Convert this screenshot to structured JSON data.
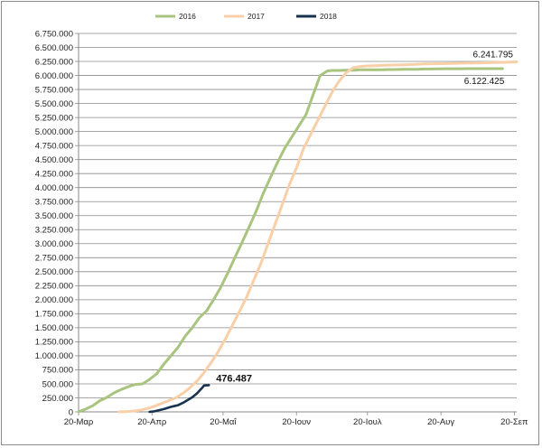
{
  "chart_data": {
    "type": "line",
    "title": "",
    "xlabel": "",
    "ylabel": "",
    "ylim": [
      0,
      6750000
    ],
    "y_ticks": [
      0,
      250000,
      500000,
      750000,
      1000000,
      1250000,
      1500000,
      1750000,
      2000000,
      2250000,
      2500000,
      2750000,
      3000000,
      3250000,
      3500000,
      3750000,
      4000000,
      4250000,
      4500000,
      4750000,
      5000000,
      5250000,
      5500000,
      5750000,
      6000000,
      6250000,
      6500000,
      6750000
    ],
    "y_tick_labels": [
      "0",
      "250.000",
      "500.000",
      "750.000",
      "1.000.000",
      "1.250.000",
      "1.500.000",
      "1.750.000",
      "2.000.000",
      "2.250.000",
      "2.500.000",
      "2.750.000",
      "3.000.000",
      "3.250.000",
      "3.500.000",
      "3.750.000",
      "4.000.000",
      "4.250.000",
      "4.500.000",
      "4.750.000",
      "5.000.000",
      "5.250.000",
      "5.500.000",
      "5.750.000",
      "6.000.000",
      "6.250.000",
      "6.500.000",
      "6.750.000"
    ],
    "xlim": [
      0,
      185
    ],
    "x_ticks": [
      0,
      31,
      61,
      92,
      122,
      153,
      184
    ],
    "x_tick_labels": [
      "20-Μαρ",
      "20-Απρ",
      "20-Μαΐ",
      "20-Ιουν",
      "20-Ιουλ",
      "20-Αυγ",
      "20-Σεπ"
    ],
    "grid": true,
    "legend_position": "top",
    "series": [
      {
        "name": "2016",
        "color": "#a9c47f",
        "x": [
          0,
          3,
          6,
          9,
          12,
          15,
          18,
          21,
          24,
          27,
          30,
          33,
          36,
          39,
          42,
          45,
          48,
          51,
          54,
          57,
          60,
          63,
          66,
          69,
          72,
          75,
          78,
          81,
          84,
          87,
          90,
          93,
          96,
          99,
          102,
          105,
          107,
          110,
          113,
          116,
          119,
          122,
          125,
          128,
          131,
          134,
          137,
          140,
          143,
          146,
          149,
          152,
          155,
          158,
          161,
          164,
          167,
          170,
          173,
          176,
          179
        ],
        "values": [
          0,
          50000,
          110000,
          200000,
          260000,
          340000,
          400000,
          450000,
          490000,
          500000,
          580000,
          680000,
          850000,
          1000000,
          1150000,
          1350000,
          1500000,
          1680000,
          1800000,
          2000000,
          2220000,
          2480000,
          2750000,
          3020000,
          3300000,
          3580000,
          3900000,
          4180000,
          4450000,
          4700000,
          4900000,
          5100000,
          5300000,
          5650000,
          6000000,
          6080000,
          6090000,
          6090000,
          6095000,
          6095000,
          6100000,
          6100000,
          6100000,
          6100000,
          6105000,
          6105000,
          6110000,
          6110000,
          6110000,
          6115000,
          6115000,
          6118000,
          6120000,
          6120000,
          6120000,
          6121000,
          6121000,
          6122000,
          6122000,
          6122400,
          6122425
        ]
      },
      {
        "name": "2017",
        "color": "#f9cfa8",
        "x": [
          17,
          20,
          23,
          26,
          29,
          32,
          35,
          38,
          41,
          44,
          47,
          50,
          53,
          56,
          59,
          62,
          65,
          68,
          71,
          74,
          77,
          80,
          83,
          86,
          89,
          92,
          95,
          98,
          101,
          104,
          107,
          110,
          113,
          116,
          119,
          122,
          125,
          128,
          131,
          134,
          137,
          140,
          143,
          146,
          149,
          152,
          155,
          158,
          161,
          164,
          167,
          170,
          173,
          176,
          179,
          182,
          185
        ],
        "values": [
          0,
          5000,
          15000,
          30000,
          60000,
          100000,
          150000,
          200000,
          250000,
          330000,
          430000,
          550000,
          700000,
          880000,
          1080000,
          1300000,
          1550000,
          1800000,
          2050000,
          2350000,
          2650000,
          3000000,
          3350000,
          3700000,
          4050000,
          4350000,
          4700000,
          4950000,
          5200000,
          5450000,
          5700000,
          5900000,
          6050000,
          6140000,
          6160000,
          6170000,
          6175000,
          6180000,
          6185000,
          6188000,
          6190000,
          6195000,
          6200000,
          6205000,
          6208000,
          6210000,
          6212000,
          6215000,
          6218000,
          6220000,
          6222000,
          6225000,
          6228000,
          6231000,
          6235000,
          6238000,
          6241795
        ]
      },
      {
        "name": "2018",
        "color": "#17324e",
        "x": [
          30,
          32,
          34,
          36,
          38,
          40,
          42,
          44,
          46,
          48,
          50,
          52,
          53,
          55
        ],
        "values": [
          0,
          10000,
          30000,
          50000,
          75000,
          100000,
          120000,
          160000,
          210000,
          260000,
          330000,
          420000,
          470000,
          476487
        ]
      }
    ],
    "annotations": [
      {
        "text": "6.241.795",
        "series": "2017"
      },
      {
        "text": "6.122.425",
        "series": "2016"
      },
      {
        "text": "476.487",
        "series": "2018"
      }
    ]
  }
}
